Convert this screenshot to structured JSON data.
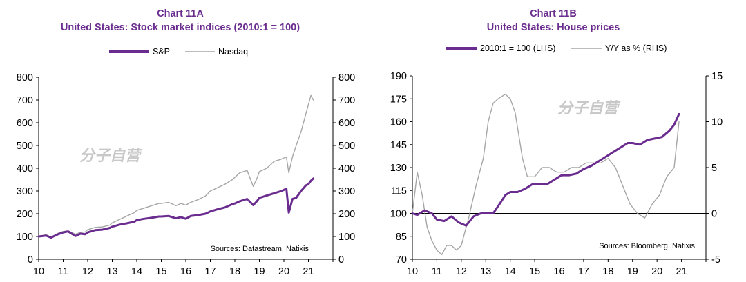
{
  "watermark": "分子自营",
  "colors": {
    "primary": "#6a2c8e",
    "secondary": "#a6a6a6",
    "axis": "#000000"
  },
  "chart_data": [
    {
      "type": "line",
      "title": "Chart 11A",
      "subtitle": "United States: Stock market indices (2010:1 = 100)",
      "source": "Sources:  Datastream,  Natixis",
      "x_ticks": [
        "10",
        "11",
        "12",
        "13",
        "14",
        "15",
        "16",
        "17",
        "18",
        "19",
        "20",
        "21"
      ],
      "xlim": [
        10,
        22
      ],
      "ylim_left": [
        0,
        800
      ],
      "ylim_right": [
        0,
        800
      ],
      "y_ticks_left": [
        "0",
        "100",
        "200",
        "300",
        "400",
        "500",
        "600",
        "700",
        "800"
      ],
      "y_ticks_right": [
        "0",
        "100",
        "200",
        "300",
        "400",
        "500",
        "600",
        "700",
        "800"
      ],
      "legend_position": "top-center",
      "series": [
        {
          "name": "S&P",
          "axis": "left",
          "x": [
            10.0,
            10.3,
            10.5,
            10.8,
            11.0,
            11.2,
            11.5,
            11.7,
            11.9,
            12.0,
            12.3,
            12.6,
            12.9,
            13.0,
            13.3,
            13.6,
            13.9,
            14.0,
            14.3,
            14.6,
            14.9,
            15.0,
            15.3,
            15.6,
            15.8,
            16.0,
            16.2,
            16.5,
            16.8,
            17.0,
            17.3,
            17.6,
            17.9,
            18.0,
            18.2,
            18.5,
            18.75,
            18.9,
            19.0,
            19.3,
            19.6,
            19.9,
            20.1,
            20.2,
            20.35,
            20.5,
            20.7,
            20.9,
            21.0,
            21.1,
            21.2
          ],
          "y": [
            100,
            104,
            95,
            110,
            118,
            122,
            102,
            112,
            110,
            118,
            128,
            130,
            138,
            143,
            152,
            158,
            165,
            172,
            178,
            182,
            188,
            188,
            190,
            180,
            185,
            178,
            190,
            194,
            200,
            210,
            220,
            228,
            242,
            245,
            255,
            265,
            238,
            255,
            270,
            280,
            290,
            300,
            310,
            205,
            265,
            270,
            300,
            325,
            330,
            345,
            355
          ]
        },
        {
          "name": "Nasdaq",
          "axis": "right",
          "x": [
            10.0,
            10.3,
            10.5,
            10.8,
            11.0,
            11.2,
            11.5,
            11.7,
            11.9,
            12.0,
            12.3,
            12.6,
            12.9,
            13.0,
            13.3,
            13.6,
            13.9,
            14.0,
            14.3,
            14.6,
            14.9,
            15.0,
            15.3,
            15.6,
            15.8,
            16.0,
            16.2,
            16.5,
            16.8,
            17.0,
            17.3,
            17.6,
            17.9,
            18.0,
            18.2,
            18.5,
            18.75,
            18.9,
            19.0,
            19.3,
            19.6,
            19.9,
            20.1,
            20.2,
            20.35,
            20.5,
            20.7,
            20.9,
            21.0,
            21.1,
            21.2
          ],
          "y": [
            100,
            108,
            98,
            115,
            122,
            125,
            110,
            118,
            120,
            130,
            140,
            142,
            150,
            160,
            175,
            190,
            205,
            215,
            225,
            235,
            245,
            245,
            250,
            235,
            245,
            238,
            250,
            262,
            278,
            300,
            315,
            330,
            350,
            360,
            380,
            390,
            320,
            355,
            385,
            400,
            430,
            440,
            450,
            380,
            450,
            500,
            560,
            640,
            680,
            720,
            700
          ]
        }
      ]
    },
    {
      "type": "line",
      "title": "Chart 11B",
      "subtitle": "United States: House prices",
      "source": "Sources:  Bloomberg,  Natixis",
      "x_ticks": [
        "10",
        "11",
        "12",
        "13",
        "14",
        "15",
        "16",
        "17",
        "18",
        "19",
        "20",
        "21"
      ],
      "xlim": [
        10,
        22
      ],
      "ylim_left": [
        70,
        190
      ],
      "ylim_right": [
        -5,
        15
      ],
      "y_ticks_left": [
        "70",
        "85",
        "100",
        "115",
        "130",
        "145",
        "160",
        "175",
        "190"
      ],
      "y_ticks_right": [
        "-5",
        "0",
        "5",
        "10",
        "15"
      ],
      "zero_line_right": 0,
      "legend_position": "top-center",
      "series": [
        {
          "name": "2010:1 = 100 (LHS)",
          "axis": "left",
          "x": [
            10.0,
            10.2,
            10.5,
            10.8,
            11.0,
            11.3,
            11.6,
            11.9,
            12.2,
            12.5,
            12.8,
            13.1,
            13.3,
            13.6,
            13.8,
            14.0,
            14.3,
            14.6,
            14.9,
            15.2,
            15.5,
            15.8,
            16.1,
            16.4,
            16.7,
            17.0,
            17.3,
            17.6,
            17.9,
            18.2,
            18.5,
            18.8,
            19.0,
            19.3,
            19.6,
            19.9,
            20.2,
            20.5,
            20.7,
            20.9
          ],
          "y": [
            100,
            99,
            102,
            100,
            96,
            95,
            98,
            94,
            92,
            98,
            100,
            100,
            100,
            107,
            112,
            114,
            114,
            116,
            119,
            119,
            119,
            122,
            125,
            125,
            126,
            129,
            131,
            134,
            137,
            140,
            143,
            146,
            146,
            145,
            148,
            149,
            150,
            154,
            158,
            165
          ]
        },
        {
          "name": "Y/Y as % (RHS)",
          "axis": "right",
          "x": [
            10.0,
            10.2,
            10.4,
            10.6,
            10.8,
            11.0,
            11.2,
            11.4,
            11.6,
            11.8,
            12.0,
            12.3,
            12.6,
            12.9,
            13.1,
            13.3,
            13.5,
            13.8,
            14.0,
            14.2,
            14.5,
            14.7,
            15.0,
            15.3,
            15.6,
            15.9,
            16.2,
            16.5,
            16.8,
            17.1,
            17.4,
            17.7,
            18.0,
            18.3,
            18.6,
            18.9,
            19.2,
            19.5,
            19.8,
            20.1,
            20.4,
            20.7,
            20.9
          ],
          "y": [
            0,
            4.5,
            2,
            -1.5,
            -3,
            -4,
            -4.5,
            -3.5,
            -3.5,
            -4,
            -3.5,
            -0.5,
            3,
            6,
            10,
            12,
            12.5,
            13,
            12.5,
            11,
            6,
            4,
            4,
            5,
            5,
            4.5,
            4.5,
            5,
            5,
            5.5,
            5.5,
            5.5,
            6,
            5,
            3,
            1,
            0,
            -0.5,
            1,
            2,
            4,
            5,
            10
          ]
        }
      ]
    }
  ]
}
